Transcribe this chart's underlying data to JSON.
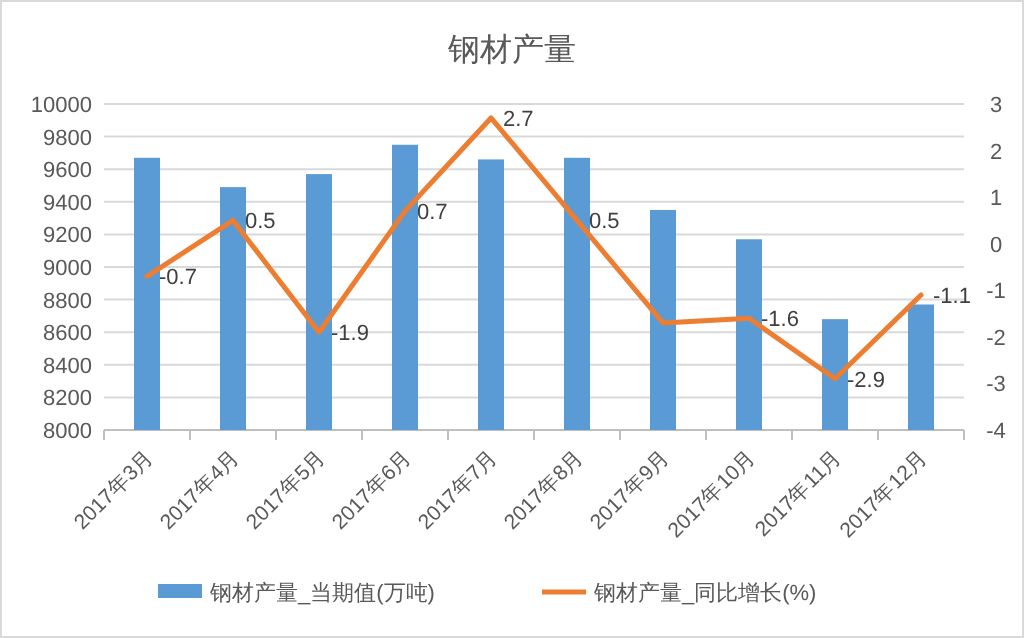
{
  "chart_data": {
    "type": "bar",
    "title": "钢材产量",
    "categories": [
      "2017年3月",
      "2017年4月",
      "2017年5月",
      "2017年6月",
      "2017年7月",
      "2017年8月",
      "2017年9月",
      "2017年10月",
      "2017年11月",
      "2017年12月"
    ],
    "series": [
      {
        "name": "钢材产量_当期值(万吨)",
        "color": "#5b9bd5",
        "values": [
          9670,
          9490,
          9570,
          9750,
          9660,
          9670,
          9350,
          9170,
          8680,
          8770
        ]
      },
      {
        "name": "钢材产量_同比增长(%)",
        "type": "line",
        "axis": "y2",
        "color": "#ed7d31",
        "values": [
          -0.7,
          0.5,
          -1.9,
          0.7,
          2.7,
          0.5,
          -1.7,
          -1.6,
          -2.9,
          -1.1
        ],
        "value_labels": [
          "-0.7",
          "0.5",
          "-1.9",
          "0.7",
          "2.7",
          "0.5",
          null,
          "-1.6",
          "-2.9",
          "-1.1"
        ]
      }
    ],
    "ylim": [
      8000,
      10000
    ],
    "yticks": [
      8000,
      8200,
      8400,
      8600,
      8800,
      9000,
      9200,
      9400,
      9600,
      9800,
      10000
    ],
    "y2lim": [
      -4,
      3
    ],
    "y2ticks": [
      -4,
      -3,
      -2,
      -1,
      0,
      1,
      2,
      3
    ],
    "grid": "y",
    "legend": "bottom"
  }
}
